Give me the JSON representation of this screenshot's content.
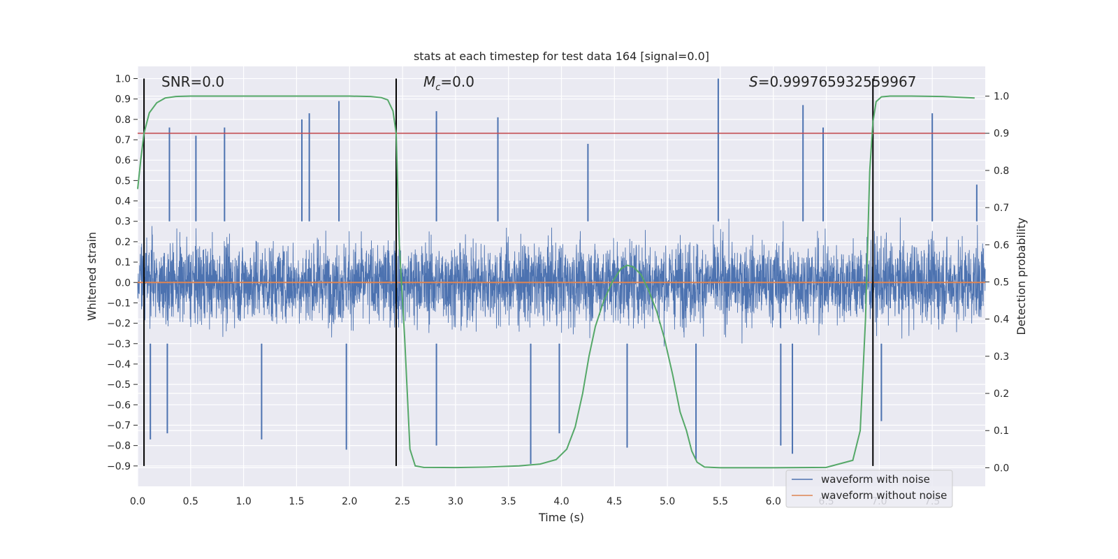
{
  "chart_data": {
    "type": "line",
    "title": "stats at each timestep for test data 164 [signal=0.0]",
    "xlabel": "Time (s)",
    "ylabel_left": "Whitened strain",
    "ylabel_right": "Detection probability",
    "xlim": [
      0.0,
      8.0
    ],
    "ylim_left": [
      -1.0,
      1.06
    ],
    "ylim_right": [
      -0.05,
      1.08
    ],
    "x_ticks": [
      0.0,
      0.5,
      1.0,
      1.5,
      2.0,
      2.5,
      3.0,
      3.5,
      4.0,
      4.5,
      5.0,
      5.5,
      6.0,
      6.5,
      7.0,
      7.5
    ],
    "x_tick_labels": [
      "0.0",
      "0.5",
      "1.0",
      "1.5",
      "2.0",
      "2.5",
      "3.0",
      "3.5",
      "4.0",
      "4.5",
      "5.0",
      "5.5",
      "6.0",
      "6.5",
      "7.0",
      "7.5"
    ],
    "y_ticks_left": [
      -0.9,
      -0.8,
      -0.7,
      -0.6,
      -0.5,
      -0.4,
      -0.3,
      -0.2,
      -0.1,
      0.0,
      0.1,
      0.2,
      0.3,
      0.4,
      0.5,
      0.6,
      0.7,
      0.8,
      0.9,
      1.0
    ],
    "y_tick_labels_left": [
      "−0.9",
      "−0.8",
      "−0.7",
      "−0.6",
      "−0.5",
      "−0.4",
      "−0.3",
      "−0.2",
      "−0.1",
      "0.0",
      "0.1",
      "0.2",
      "0.3",
      "0.4",
      "0.5",
      "0.6",
      "0.7",
      "0.8",
      "0.9",
      "1.0"
    ],
    "y_ticks_right": [
      0.0,
      0.1,
      0.2,
      0.3,
      0.4,
      0.5,
      0.6,
      0.7,
      0.8,
      0.9,
      1.0
    ],
    "y_tick_labels_right": [
      "0.0",
      "0.1",
      "0.2",
      "0.3",
      "0.4",
      "0.5",
      "0.6",
      "0.7",
      "0.8",
      "0.9",
      "1.0"
    ],
    "annotations": {
      "snr": "SNR=0.0",
      "mc_symbol": "M",
      "mc_sub": "c",
      "mc_value": "=0.0",
      "s_symbol": "S",
      "s_value": "=0.999765932559967"
    },
    "series": [
      {
        "name": "waveform with noise",
        "color": "#4c72b0",
        "description": "dense whitened noise strain, envelope roughly ±0.45 with spikes",
        "peaks_positive": [
          [
            0.06,
            0.55
          ],
          [
            0.3,
            0.76
          ],
          [
            0.55,
            0.72
          ],
          [
            0.82,
            0.76
          ],
          [
            1.55,
            0.8
          ],
          [
            1.62,
            0.83
          ],
          [
            1.9,
            0.89
          ],
          [
            2.82,
            0.84
          ],
          [
            3.4,
            0.81
          ],
          [
            4.25,
            0.68
          ],
          [
            5.48,
            1.0
          ],
          [
            6.28,
            0.87
          ],
          [
            6.47,
            0.76
          ],
          [
            7.5,
            0.83
          ],
          [
            7.92,
            0.48
          ]
        ],
        "peaks_negative": [
          [
            0.12,
            -0.77
          ],
          [
            0.28,
            -0.74
          ],
          [
            1.17,
            -0.77
          ],
          [
            1.97,
            -0.82
          ],
          [
            2.82,
            -0.8
          ],
          [
            3.71,
            -0.89
          ],
          [
            3.98,
            -0.74
          ],
          [
            4.62,
            -0.81
          ],
          [
            5.27,
            -0.87
          ],
          [
            6.07,
            -0.8
          ],
          [
            6.18,
            -0.84
          ],
          [
            7.02,
            -0.68
          ]
        ]
      },
      {
        "name": "waveform without noise",
        "color": "#dd8452",
        "description": "flat at 0.0",
        "x": [
          0.0,
          8.0
        ],
        "y": [
          0.0,
          0.0
        ]
      },
      {
        "name": "detection probability",
        "color": "#55a868",
        "axis": "right",
        "x": [
          0.0,
          0.03,
          0.06,
          0.11,
          0.18,
          0.26,
          0.36,
          0.5,
          0.8,
          1.2,
          1.6,
          2.0,
          2.2,
          2.3,
          2.36,
          2.41,
          2.44,
          2.47,
          2.52,
          2.57,
          2.62,
          2.7,
          3.0,
          3.3,
          3.6,
          3.8,
          3.95,
          4.05,
          4.13,
          4.2,
          4.26,
          4.32,
          4.4,
          4.48,
          4.56,
          4.62,
          4.68,
          4.75,
          4.82,
          4.9,
          4.97,
          5.05,
          5.12,
          5.18,
          5.23,
          5.28,
          5.35,
          5.5,
          6.0,
          6.5,
          6.75,
          6.82,
          6.87,
          6.91,
          6.94,
          6.97,
          7.02,
          7.1,
          7.3,
          7.6,
          7.9
        ],
        "y": [
          0.75,
          0.83,
          0.9,
          0.955,
          0.982,
          0.995,
          0.999,
          1.0,
          1.0,
          1.0,
          1.0,
          1.0,
          0.999,
          0.996,
          0.99,
          0.96,
          0.9,
          0.6,
          0.35,
          0.05,
          0.005,
          0.001,
          0.0005,
          0.002,
          0.005,
          0.01,
          0.022,
          0.05,
          0.11,
          0.2,
          0.3,
          0.38,
          0.45,
          0.5,
          0.535,
          0.545,
          0.54,
          0.52,
          0.48,
          0.42,
          0.35,
          0.25,
          0.15,
          0.1,
          0.045,
          0.015,
          0.002,
          0.0,
          0.0,
          0.001,
          0.02,
          0.1,
          0.4,
          0.8,
          0.93,
          0.985,
          0.998,
          1.0,
          1.0,
          0.999,
          0.995
        ]
      }
    ],
    "threshold": {
      "value": 0.9,
      "axis": "right",
      "color": "#c44e52"
    },
    "vertical_lines": [
      0.06,
      2.44,
      6.94
    ],
    "vertical_lines_range": [
      -0.9,
      1.0
    ],
    "legend": {
      "placement": "lower-right",
      "entries": [
        "waveform with noise",
        "waveform without noise"
      ]
    }
  }
}
